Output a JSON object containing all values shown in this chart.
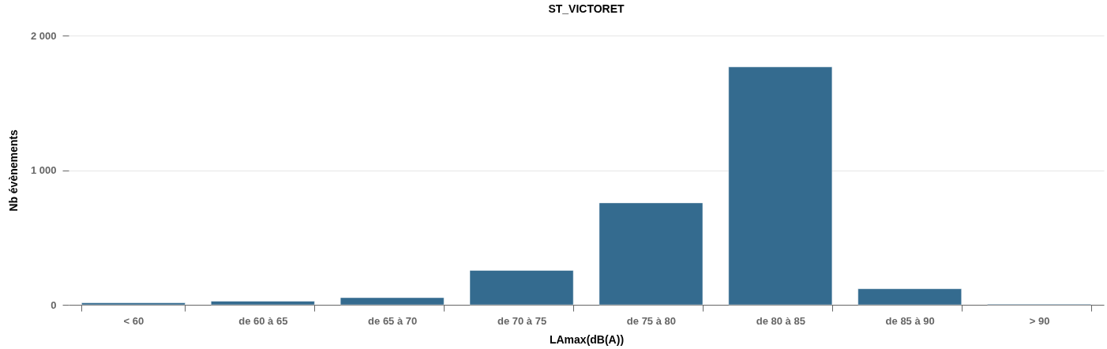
{
  "chart_data": {
    "type": "bar",
    "title": "ST_VICTORET",
    "xlabel": "LAmax(dB(A))",
    "ylabel": "Nb évènements",
    "categories": [
      "< 60",
      "de 60 à 65",
      "de 65 à 70",
      "de 70 à 75",
      "de 75 à 80",
      "de 80 à 85",
      "de 85 à 90",
      "> 90"
    ],
    "values": [
      15,
      27,
      53,
      255,
      757,
      1767,
      119,
      5
    ],
    "color": "#346b8f",
    "ylim": [
      0,
      2000
    ],
    "yticks": [
      0,
      {
        "value": 1000,
        "label": "1 000"
      },
      {
        "value": 2000,
        "label": "2 000"
      }
    ],
    "grid": "y"
  }
}
